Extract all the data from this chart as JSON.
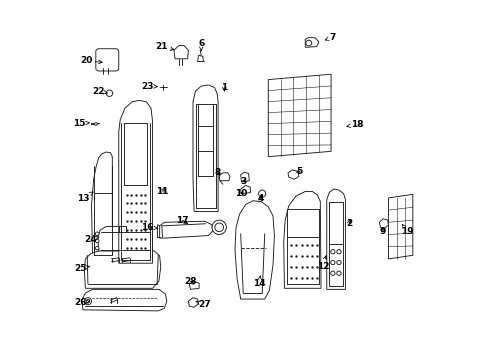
{
  "bg_color": "#ffffff",
  "line_color": "#1a1a1a",
  "labels": {
    "1": [
      0.442,
      0.758,
      0.443,
      0.742
    ],
    "2": [
      0.79,
      0.378,
      0.795,
      0.395
    ],
    "3": [
      0.497,
      0.495,
      0.503,
      0.508
    ],
    "4": [
      0.543,
      0.448,
      0.548,
      0.462
    ],
    "5": [
      0.653,
      0.524,
      0.638,
      0.52
    ],
    "6": [
      0.378,
      0.882,
      0.378,
      0.855
    ],
    "7": [
      0.743,
      0.898,
      0.718,
      0.888
    ],
    "8": [
      0.424,
      0.52,
      0.435,
      0.51
    ],
    "9": [
      0.885,
      0.355,
      0.885,
      0.373
    ],
    "10": [
      0.49,
      0.462,
      0.498,
      0.472
    ],
    "11": [
      0.268,
      0.468,
      0.283,
      0.48
    ],
    "12": [
      0.718,
      0.26,
      0.728,
      0.295
    ],
    "13": [
      0.048,
      0.448,
      0.082,
      0.47
    ],
    "14": [
      0.54,
      0.212,
      0.543,
      0.238
    ],
    "15": [
      0.038,
      0.658,
      0.072,
      0.66
    ],
    "16": [
      0.228,
      0.368,
      0.262,
      0.365
    ],
    "17": [
      0.325,
      0.388,
      0.345,
      0.375
    ],
    "18": [
      0.812,
      0.655,
      0.778,
      0.648
    ],
    "19": [
      0.953,
      0.355,
      0.938,
      0.378
    ],
    "20": [
      0.058,
      0.832,
      0.108,
      0.828
    ],
    "21": [
      0.268,
      0.872,
      0.308,
      0.862
    ],
    "22": [
      0.092,
      0.748,
      0.118,
      0.742
    ],
    "23": [
      0.228,
      0.762,
      0.262,
      0.76
    ],
    "24": [
      0.068,
      0.335,
      0.098,
      0.342
    ],
    "25": [
      0.042,
      0.252,
      0.068,
      0.26
    ],
    "26": [
      0.042,
      0.158,
      0.068,
      0.162
    ],
    "27": [
      0.388,
      0.152,
      0.362,
      0.162
    ],
    "28": [
      0.348,
      0.218,
      0.362,
      0.205
    ]
  }
}
